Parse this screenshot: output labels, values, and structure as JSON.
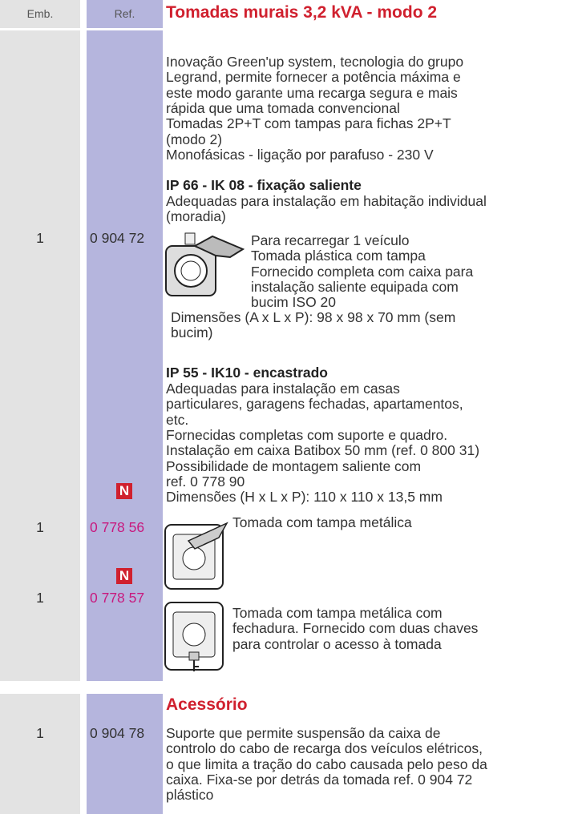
{
  "header": {
    "emb": "Emb.",
    "ref": "Ref.",
    "title": "Tomadas murais 3,2 kVA - modo 2"
  },
  "intro": [
    "Inovação Green'up system, tecnologia do grupo",
    "Legrand, permite fornecer a potência máxima e",
    "este modo garante uma recarga segura e mais",
    "rápida que uma tomada convencional",
    "Tomadas 2P+T com tampas para fichas 2P+T",
    "(modo 2)",
    "Monofásicas - ligação por parafuso - 230 V"
  ],
  "group1": {
    "heading": "IP 66 - IK 08 - fixação saliente",
    "description": [
      "Adequadas para instalação em habitação individual",
      "(moradia)"
    ],
    "item": {
      "emb": "1",
      "ref": "0 904 72",
      "text": [
        "Para recarregar 1 veículo",
        "Tomada plástica com tampa",
        "Fornecido completa com caixa para",
        "instalação saliente equipada com",
        "bucim ISO 20"
      ]
    },
    "dimensions": [
      "Dimensões (A x L x P): 98 x 98 x 70 mm (sem",
      "bucim)"
    ]
  },
  "group2": {
    "heading": "IP 55 - IK10 - encastrado",
    "description": [
      "Adequadas para instalação em casas",
      "particulares, garagens fechadas, apartamentos,",
      "etc.",
      "Fornecidas completas com suporte e quadro.",
      "Instalação em caixa Batibox 50 mm (ref. 0 800 31)",
      "Possibilidade de montagem saliente com",
      "ref. 0 778 90",
      "Dimensões (H x L x P): 110 x 110 x 13,5 mm"
    ],
    "items": [
      {
        "emb": "1",
        "badge": "N",
        "ref": "0 778 56",
        "text": [
          "Tomada com tampa metálica"
        ]
      },
      {
        "emb": "1",
        "badge": "N",
        "ref": "0 778 57",
        "text": [
          "Tomada com tampa metálica com",
          "fechadura. Fornecido com duas chaves",
          "para controlar o acesso à tomada"
        ]
      }
    ]
  },
  "accessory": {
    "title": "Acessório",
    "emb": "1",
    "ref": "0 904 78",
    "text": [
      "Suporte que permite suspensão da caixa de",
      "controlo do cabo de recarga dos veículos elétricos,",
      "o que limita a tração do cabo causada pelo peso da",
      "caixa. Fixa-se por detrás da tomada ref. 0 904 72",
      "plástico"
    ]
  }
}
